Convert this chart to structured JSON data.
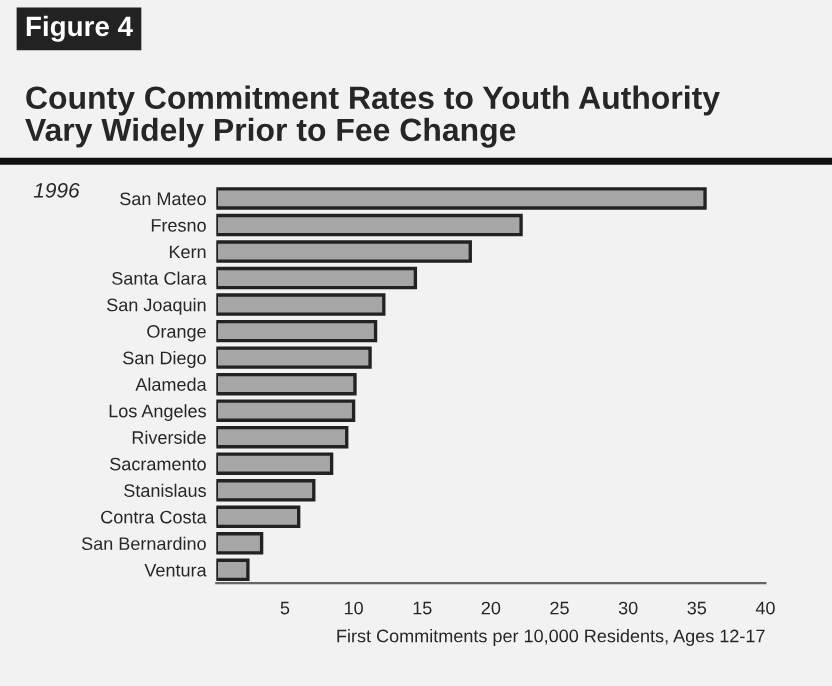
{
  "chart_data": {
    "type": "bar",
    "orientation": "horizontal",
    "title": "County Commitment Rates to Youth Authority\nVary Widely Prior to Fee Change",
    "subtitle": "1996",
    "annotations": [
      "Figure 4"
    ],
    "xlabel": "First Commitments per 10,000 Residents, Ages 12-17",
    "categories": [
      "San Mateo",
      "Fresno",
      "Kern",
      "Santa Clara",
      "San Joaquin",
      "Orange",
      "San Diego",
      "Alameda",
      "Los Angeles",
      "Riverside",
      "Sacramento",
      "Stanislaus",
      "Contra Costa",
      "San Bernardino",
      "Ventura"
    ],
    "values": [
      35.6,
      22.2,
      18.5,
      14.5,
      12.2,
      11.6,
      11.2,
      10.1,
      10.0,
      9.5,
      8.4,
      7.1,
      6.0,
      3.3,
      2.3
    ],
    "color": "#a6a6a6",
    "xlim": [
      0,
      40
    ],
    "xticks": [
      5,
      10,
      15,
      20,
      25,
      30,
      35,
      40
    ],
    "grid": false,
    "legend": false
  }
}
